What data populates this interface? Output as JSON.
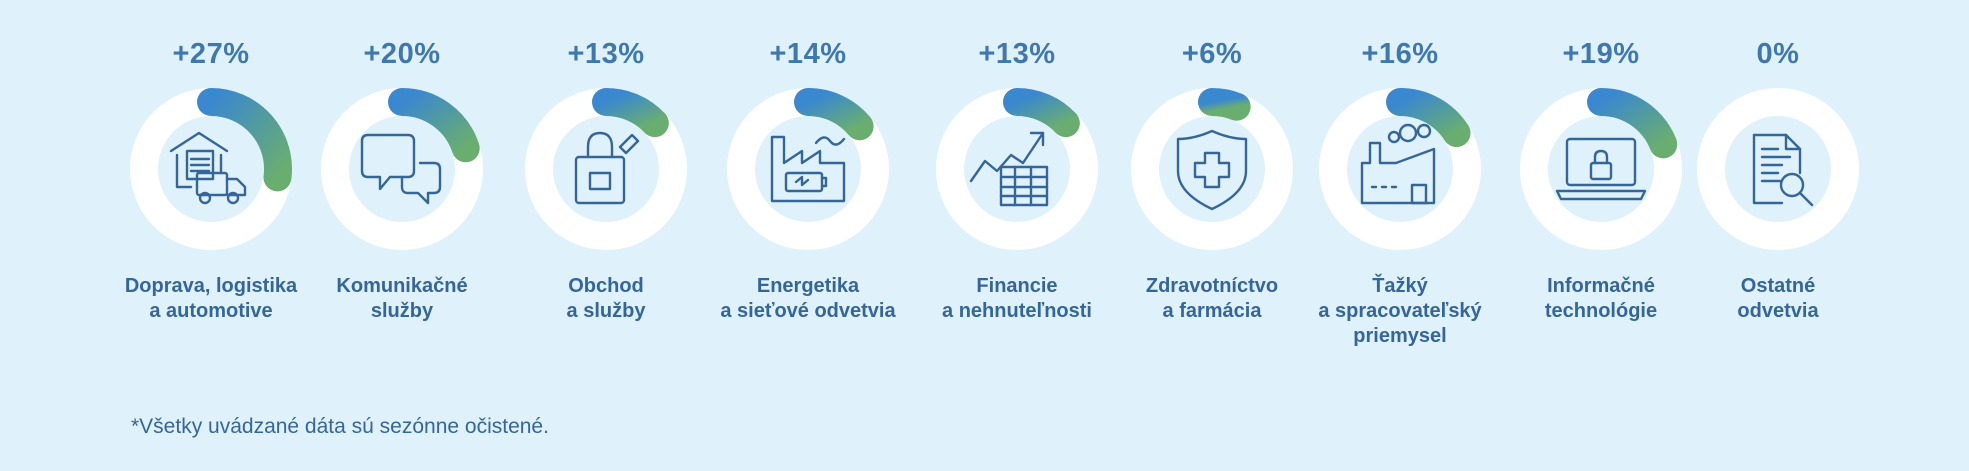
{
  "chart_data": {
    "type": "donut",
    "unit": "%",
    "ylim": [
      0,
      100
    ],
    "categories": [
      "Doprava, logistika a automotive",
      "Komunikačné služby",
      "Obchod a služby",
      "Energetika a sieťové odvetvia",
      "Financie a nehnuteľnosti",
      "Zdravotníctvo a farmácia",
      "Ťažký a spracovateľský priemysel",
      "Informačné technológie",
      "Ostatné odvetvia"
    ],
    "values": [
      27,
      20,
      13,
      14,
      13,
      6,
      16,
      19,
      0
    ],
    "items": [
      {
        "value_label": "+27%",
        "value": 27,
        "label_lines": [
          "Doprava, logistika",
          "a automotive"
        ],
        "icon": "warehouse-truck-icon"
      },
      {
        "value_label": "+20%",
        "value": 20,
        "label_lines": [
          "Komunikačné",
          "služby"
        ],
        "icon": "chat-bubbles-icon"
      },
      {
        "value_label": "+13%",
        "value": 13,
        "label_lines": [
          "Obchod",
          "a služby"
        ],
        "icon": "shopping-bag-icon"
      },
      {
        "value_label": "+14%",
        "value": 14,
        "label_lines": [
          "Energetika",
          "a sieťové odvetvia"
        ],
        "icon": "factory-battery-icon"
      },
      {
        "value_label": "+13%",
        "value": 13,
        "label_lines": [
          "Financie",
          "a nehnuteľnosti"
        ],
        "icon": "finance-chart-icon"
      },
      {
        "value_label": "+6%",
        "value": 6,
        "label_lines": [
          "Zdravotníctvo",
          "a farmácia"
        ],
        "icon": "medical-shield-icon"
      },
      {
        "value_label": "+16%",
        "value": 16,
        "label_lines": [
          "Ťažký",
          "a spracovateľský",
          "priemysel"
        ],
        "icon": "heavy-industry-icon"
      },
      {
        "value_label": "+19%",
        "value": 19,
        "label_lines": [
          "Informačné",
          "technológie"
        ],
        "icon": "laptop-lock-icon"
      },
      {
        "value_label": "0%",
        "value": 0,
        "label_lines": [
          "Ostatné",
          "odvetvia"
        ],
        "icon": "document-search-icon"
      }
    ]
  },
  "footnote": "*Všetky uvádzané dáta sú sezónne očistené.",
  "colors": {
    "background": "#dff1fa",
    "ring_track": "#ffffff",
    "arc_start": "#3a88cf",
    "arc_end": "#6aae6f",
    "percent_text": "#3f78ac",
    "label_text": "#35669a",
    "icon_stroke": "#35669a"
  }
}
